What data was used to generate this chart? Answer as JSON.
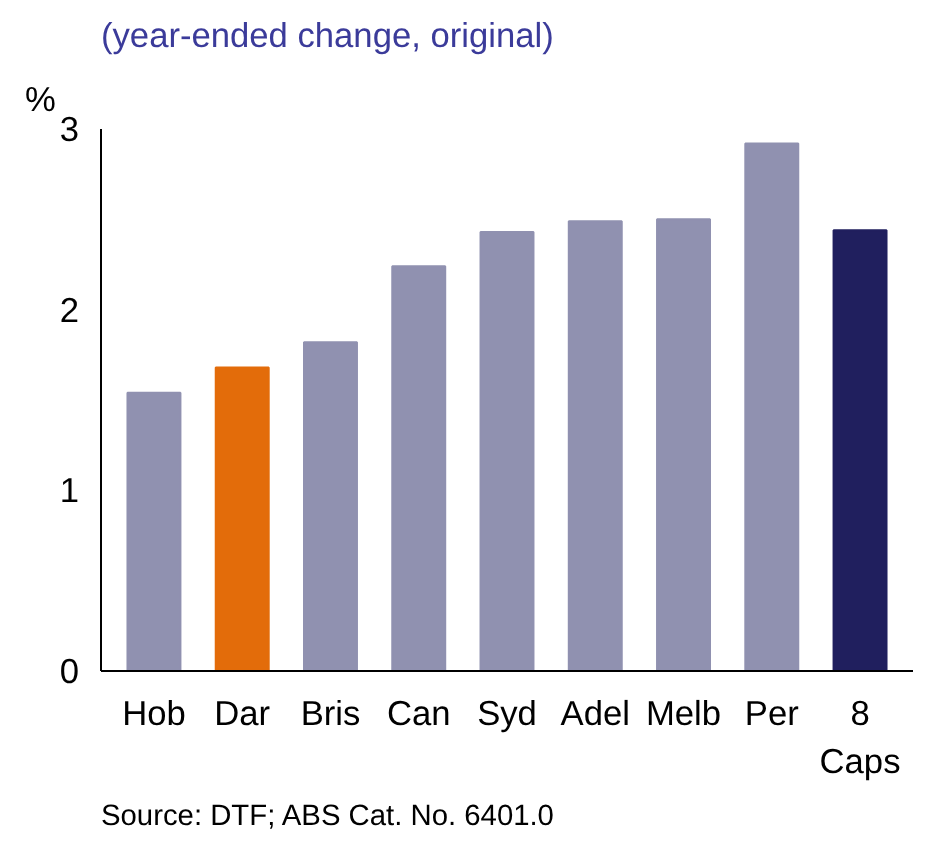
{
  "chart_data": {
    "type": "bar",
    "title": "(year-ended change, original)",
    "ylabel": "%",
    "categories": [
      "Hob",
      "Dar",
      "Bris",
      "Can",
      "Syd",
      "Adel",
      "Melb",
      "Per",
      "8\nCaps"
    ],
    "values": [
      1.54,
      1.68,
      1.82,
      2.24,
      2.43,
      2.49,
      2.5,
      2.92,
      2.44
    ],
    "colors": [
      "#9091b0",
      "#e36c0a",
      "#9091b0",
      "#9091b0",
      "#9091b0",
      "#9091b0",
      "#9091b0",
      "#9091b0",
      "#201f5e"
    ],
    "ylim": [
      0,
      3
    ],
    "yticks": [
      0,
      1,
      2,
      3
    ],
    "grid": false,
    "annotations": [
      "Source: DTF; ABS Cat. No. 6401.0"
    ]
  }
}
